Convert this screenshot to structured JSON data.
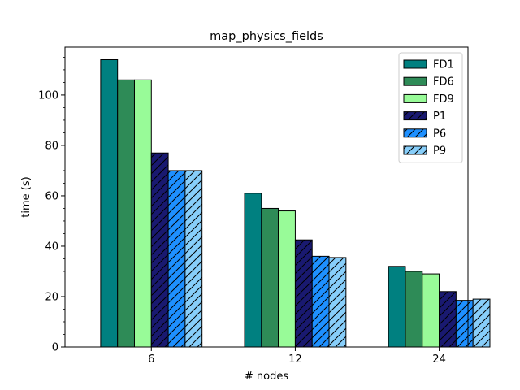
{
  "chart_data": {
    "type": "bar",
    "title": "map_physics_fields",
    "xlabel": "# nodes",
    "ylabel": "time (s)",
    "categories": [
      "6",
      "12",
      "24"
    ],
    "ylim": [
      0,
      119
    ],
    "yticks": [
      0,
      20,
      40,
      60,
      80,
      100
    ],
    "yminor_step": 5,
    "grid": false,
    "legend_position": "top-right",
    "series": [
      {
        "name": "FD1",
        "values": [
          114,
          61,
          32
        ],
        "color": "#008080",
        "hatch": false
      },
      {
        "name": "FD6",
        "values": [
          106,
          55,
          30
        ],
        "color": "#2e8b57",
        "hatch": false
      },
      {
        "name": "FD9",
        "values": [
          106,
          54,
          29
        ],
        "color": "#98fb98",
        "hatch": false
      },
      {
        "name": "P1",
        "values": [
          77,
          42.5,
          22
        ],
        "color": "#191970",
        "hatch": true
      },
      {
        "name": "P6",
        "values": [
          70,
          36,
          18.5
        ],
        "color": "#1e90ff",
        "hatch": true
      },
      {
        "name": "P9",
        "values": [
          70,
          35.5,
          19
        ],
        "color": "#87cefa",
        "hatch": true
      }
    ]
  }
}
